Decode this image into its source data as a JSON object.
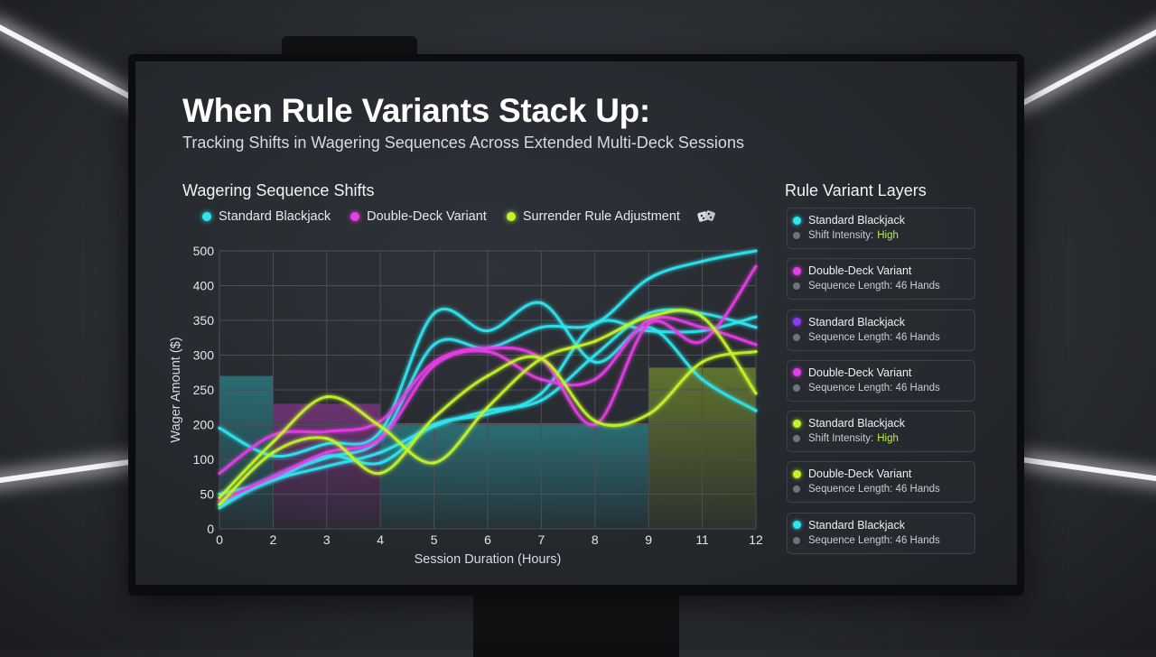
{
  "header": {
    "title": "When Rule Variants Stack Up:",
    "subtitle": "Tracking Shifts in Wagering Sequences Across Extended Multi-Deck Sessions"
  },
  "colors": {
    "cyan": "#2ee6f0",
    "magenta": "#e63ee6",
    "lime": "#c4f52a",
    "purple": "#8a3cf0",
    "highlight": "#b8f23a"
  },
  "chart_data": {
    "type": "line",
    "title": "Wagering Sequence Shifts",
    "xlabel": "Session Duration (Hours)",
    "ylabel": "Wager Amount ($)",
    "categories": [
      "0",
      "2",
      "3",
      "4",
      "5",
      "6",
      "7",
      "8",
      "9",
      "11",
      "12"
    ],
    "y_ticks": [
      0,
      50,
      100,
      200,
      250,
      300,
      350,
      400,
      500
    ],
    "ylim": [
      0,
      500
    ],
    "grid": true,
    "legend": [
      {
        "label": "Standard Blackjack",
        "color": "#2ee6f0"
      },
      {
        "label": "Double-Deck Variant",
        "color": "#e63ee6"
      },
      {
        "label": "Surrender Rule Adjustment",
        "color": "#c4f52a"
      }
    ],
    "legend_icon": "dice-icon",
    "series": [
      {
        "name": "Standard Blackjack",
        "color": "#2ee6f0",
        "values": [
          30,
          75,
          105,
          160,
          315,
          310,
          340,
          345,
          420,
          470,
          500
        ]
      },
      {
        "name": "Standard Blackjack",
        "color": "#2ee6f0",
        "values": [
          190,
          110,
          145,
          180,
          360,
          335,
          375,
          290,
          340,
          265,
          220
        ]
      },
      {
        "name": "Standard Blackjack",
        "color": "#2ee6f0",
        "values": [
          50,
          70,
          110,
          95,
          200,
          215,
          245,
          345,
          335,
          335,
          355
        ]
      },
      {
        "name": "Standard Blackjack",
        "color": "#2ee6f0",
        "values": [
          35,
          70,
          90,
          120,
          195,
          220,
          235,
          300,
          360,
          360,
          340
        ]
      },
      {
        "name": "Double-Deck Variant",
        "color": "#e63ee6",
        "values": [
          80,
          170,
          180,
          205,
          290,
          310,
          295,
          200,
          345,
          320,
          455
        ]
      },
      {
        "name": "Double-Deck Variant",
        "color": "#e63ee6",
        "values": [
          40,
          75,
          120,
          160,
          285,
          305,
          265,
          265,
          350,
          340,
          315
        ]
      },
      {
        "name": "Surrender Rule Adjustment",
        "color": "#c4f52a",
        "values": [
          45,
          150,
          240,
          195,
          95,
          225,
          295,
          320,
          355,
          355,
          245
        ]
      },
      {
        "name": "Surrender Rule Adjustment",
        "color": "#c4f52a",
        "values": [
          35,
          120,
          160,
          80,
          210,
          270,
          295,
          205,
          215,
          290,
          305
        ]
      }
    ],
    "bands": [
      {
        "from": "0",
        "to": "2",
        "color": "#2ee6f0"
      },
      {
        "from": "2",
        "to": "4",
        "color": "#e63ee6"
      },
      {
        "from": "4",
        "to": "9",
        "color": "#2ee6f0"
      },
      {
        "from": "9",
        "to": "12",
        "color": "#c4f52a"
      }
    ]
  },
  "side_panel": {
    "title": "Rule Variant Layers",
    "cards": [
      {
        "name": "Standard Blackjack",
        "color": "#2ee6f0",
        "detail": "Shift Intensity:",
        "value": "High"
      },
      {
        "name": "Double-Deck Variant",
        "color": "#e63ee6",
        "detail": "Sequence Length: 46 Hands",
        "value": ""
      },
      {
        "name": "Standard Blackjack",
        "color": "#8a3cf0",
        "detail": "Sequence Length: 46 Hands",
        "value": ""
      },
      {
        "name": "Double-Deck Variant",
        "color": "#e63ee6",
        "detail": "Sequence Length: 46 Hands",
        "value": ""
      },
      {
        "name": "Standard Blackjack",
        "color": "#c4f52a",
        "detail": "Shift Intensity:",
        "value": "High"
      },
      {
        "name": "Double-Deck Variant",
        "color": "#c4f52a",
        "detail": "Sequence Length: 46 Hands",
        "value": ""
      },
      {
        "name": "Standard Blackjack",
        "color": "#2ee6f0",
        "detail": "Sequence Length: 46 Hands",
        "value": ""
      }
    ]
  }
}
